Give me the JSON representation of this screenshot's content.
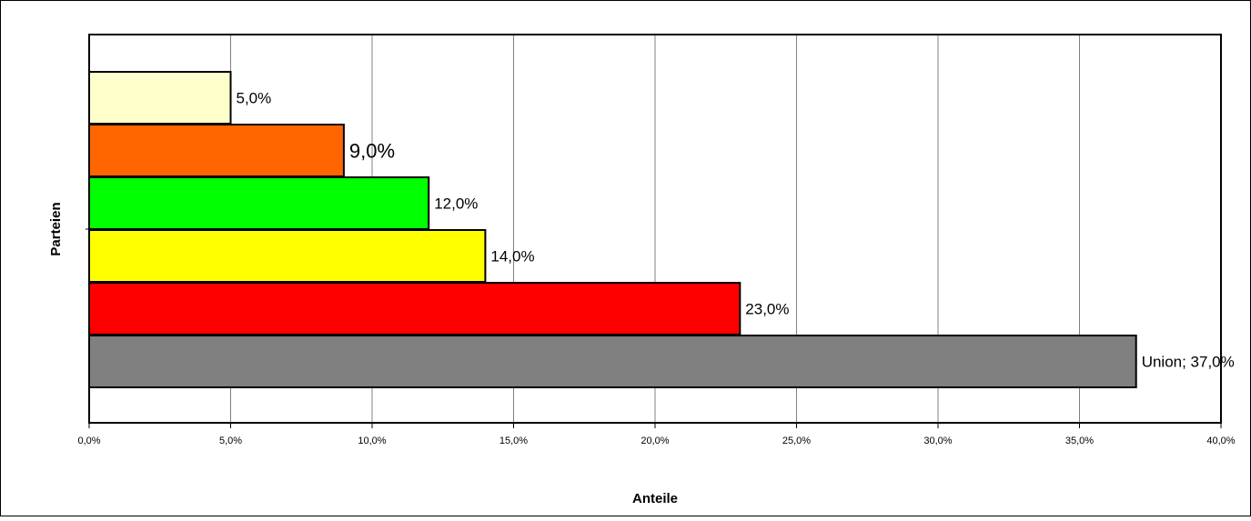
{
  "chart_data": {
    "type": "bar",
    "orientation": "horizontal",
    "title": "",
    "xlabel": "Anteile",
    "ylabel": "Parteien",
    "xlim": [
      0,
      40
    ],
    "grid": "vertical",
    "legend": "none",
    "x_ticks": [
      "0,0%",
      "5,0%",
      "10,0%",
      "15,0%",
      "20,0%",
      "25,0%",
      "30,0%",
      "35,0%",
      "40,0%"
    ],
    "bars": [
      {
        "value": 37,
        "label": "Union; 37,0%",
        "color": "#808080"
      },
      {
        "value": 23,
        "label": "23,0%",
        "color": "#ff0000"
      },
      {
        "value": 14,
        "label": "14,0%",
        "color": "#ffff00"
      },
      {
        "value": 12,
        "label": "12,0%",
        "color": "#00ff00"
      },
      {
        "value": 9,
        "label": "9,0%",
        "color": "#ff6600"
      },
      {
        "value": 5,
        "label": "5,0%",
        "color": "#ffffcc"
      }
    ]
  }
}
